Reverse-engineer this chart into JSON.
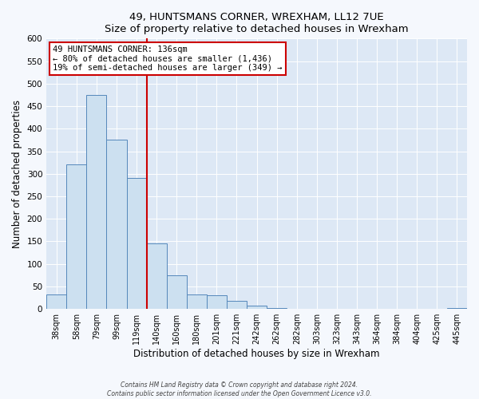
{
  "title": "49, HUNTSMANS CORNER, WREXHAM, LL12 7UE",
  "subtitle": "Size of property relative to detached houses in Wrexham",
  "xlabel": "Distribution of detached houses by size in Wrexham",
  "ylabel": "Number of detached properties",
  "bar_labels": [
    "38sqm",
    "58sqm",
    "79sqm",
    "99sqm",
    "119sqm",
    "140sqm",
    "160sqm",
    "180sqm",
    "201sqm",
    "221sqm",
    "242sqm",
    "262sqm",
    "282sqm",
    "303sqm",
    "323sqm",
    "343sqm",
    "364sqm",
    "384sqm",
    "404sqm",
    "425sqm",
    "445sqm"
  ],
  "bar_values": [
    32,
    320,
    475,
    375,
    290,
    145,
    75,
    32,
    30,
    18,
    7,
    2,
    1,
    1,
    0,
    0,
    0,
    0,
    0,
    0,
    2
  ],
  "bar_color": "#cce0f0",
  "bar_edge_color": "#5588bb",
  "vline_color": "#cc0000",
  "ylim": [
    0,
    600
  ],
  "yticks": [
    0,
    50,
    100,
    150,
    200,
    250,
    300,
    350,
    400,
    450,
    500,
    550,
    600
  ],
  "annotation_title": "49 HUNTSMANS CORNER: 136sqm",
  "annotation_line1": "← 80% of detached houses are smaller (1,436)",
  "annotation_line2": "19% of semi-detached houses are larger (349) →",
  "annotation_box_color": "white",
  "annotation_box_edge_color": "#cc0000",
  "footer_line1": "Contains HM Land Registry data © Crown copyright and database right 2024.",
  "footer_line2": "Contains public sector information licensed under the Open Government Licence v3.0.",
  "fig_bg_color": "#f5f8fd",
  "plot_bg_color": "#dde8f5",
  "grid_color": "#ffffff"
}
